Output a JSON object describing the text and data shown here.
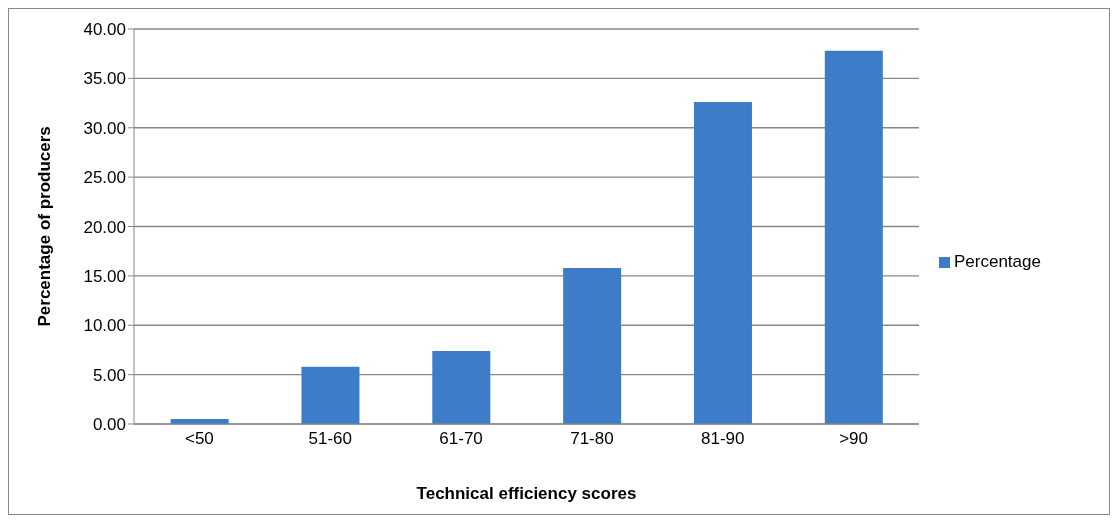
{
  "chart_data": {
    "type": "bar",
    "xlabel": "Technical efficiency scores",
    "ylabel": "Percentage of producers",
    "categories": [
      "<50",
      "51-60",
      "61-70",
      "71-80",
      "81-90",
      ">90"
    ],
    "series": [
      {
        "name": "Percentage",
        "color": "#3d7cc9",
        "values": [
          0.5,
          5.8,
          7.4,
          15.8,
          32.6,
          37.8
        ]
      }
    ],
    "ylim": [
      0,
      40
    ],
    "yticks": [
      {
        "value": 0,
        "label": "0.00"
      },
      {
        "value": 5,
        "label": "5.00"
      },
      {
        "value": 10,
        "label": "10.00"
      },
      {
        "value": 15,
        "label": "15.00"
      },
      {
        "value": 20,
        "label": "20.00"
      },
      {
        "value": 25,
        "label": "25.00"
      },
      {
        "value": 30,
        "label": "30.00"
      },
      {
        "value": 35,
        "label": "35.00"
      },
      {
        "value": 40,
        "label": "40.00"
      }
    ],
    "grid": "y",
    "legend": "right"
  }
}
